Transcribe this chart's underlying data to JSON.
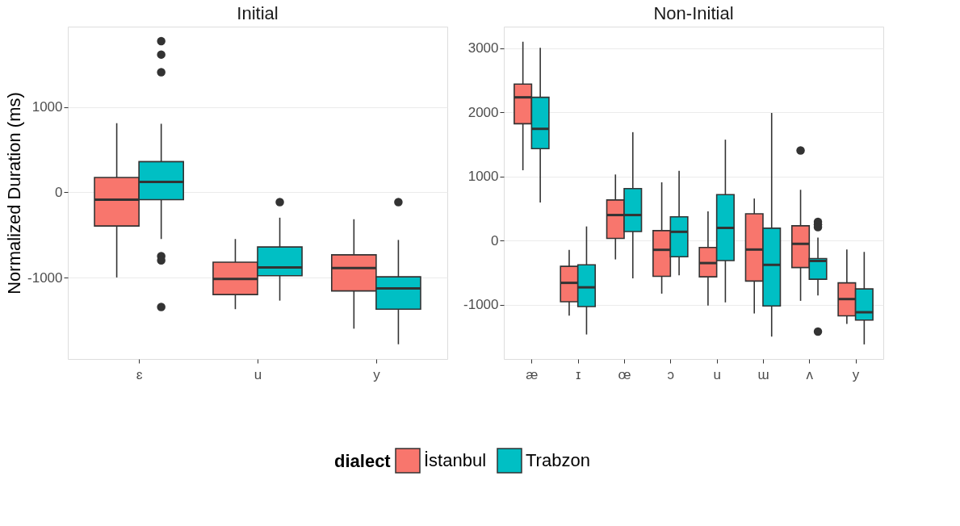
{
  "chart_data": [
    {
      "type": "box",
      "title": "Initial",
      "ylabel": "Normalized Duration (ms)",
      "categories": [
        "ɛ",
        "u",
        "y"
      ],
      "series": [
        {
          "name": "İstanbul",
          "color": "#f8766d",
          "boxes": [
            {
              "low": -998,
              "q1": -394,
              "median": -86,
              "q3": 175,
              "high": 812
            },
            {
              "low": -1370,
              "q1": -1199,
              "median": -1016,
              "q3": -819,
              "high": -547
            },
            {
              "low": -1599,
              "q1": -1156,
              "median": -887,
              "q3": -733,
              "high": -315
            }
          ]
        },
        {
          "name": "Trabzon",
          "color": "#00bfc4",
          "boxes": [
            {
              "low": -547,
              "q1": -86,
              "median": 122,
              "q3": 361,
              "high": 805,
              "outliers": [
                1775,
                1617,
                1410,
                -748,
                -798,
                -1345
              ]
            },
            {
              "low": -1270,
              "q1": -977,
              "median": -880,
              "q3": -640,
              "high": -297,
              "outliers": [
                -114
              ]
            },
            {
              "low": -1782,
              "q1": -1370,
              "median": -1127,
              "q3": -991,
              "high": -558,
              "outliers": [
                -114
              ]
            }
          ]
        }
      ],
      "ylim": [
        -1955,
        1945
      ],
      "yticks": [
        -1000,
        0,
        1000
      ],
      "grid": "y",
      "legend": "bottom",
      "legend_title": "dialect"
    },
    {
      "type": "box",
      "title": "Non-Initial",
      "categories": [
        "æ",
        "ɪ",
        "œ",
        "ɔ",
        "u",
        "ɯ",
        "ʌ",
        "y"
      ],
      "series": [
        {
          "name": "İstanbul",
          "color": "#f8766d",
          "boxes": [
            {
              "low": 1097,
              "q1": 1824,
              "median": 2236,
              "q3": 2443,
              "high": 3104
            },
            {
              "low": -1172,
              "q1": -956,
              "median": -661,
              "q3": -403,
              "high": -145
            },
            {
              "low": -295,
              "q1": 33,
              "median": 398,
              "q3": 633,
              "high": 1031
            },
            {
              "low": -830,
              "q1": -558,
              "median": -145,
              "q3": 155,
              "high": 909
            },
            {
              "low": -1017,
              "q1": -567,
              "median": -352,
              "q3": -108,
              "high": 455
            },
            {
              "low": -1139,
              "q1": -633,
              "median": -141,
              "q3": 417,
              "high": 656
            },
            {
              "low": -942,
              "q1": -422,
              "median": -52,
              "q3": 230,
              "high": 792,
              "outliers": [
                1406
              ]
            },
            {
              "low": -1303,
              "q1": -1177,
              "median": -914,
              "q3": -661,
              "high": -141
            }
          ]
        },
        {
          "name": "Trabzon",
          "color": "#00bfc4",
          "boxes": [
            {
              "low": 595,
              "q1": 1435,
              "median": 1744,
              "q3": 2236,
              "high": 3010
            },
            {
              "low": -1467,
              "q1": -1031,
              "median": -731,
              "q3": -380,
              "high": 220
            },
            {
              "low": -591,
              "q1": 141,
              "median": 398,
              "q3": 811,
              "high": 1692
            },
            {
              "low": -544,
              "q1": -253,
              "median": 136,
              "q3": 370,
              "high": 1088
            },
            {
              "low": -966,
              "q1": -314,
              "median": 197,
              "q3": 717,
              "high": 1575
            },
            {
              "low": -1500,
              "q1": -1022,
              "median": -380,
              "q3": 192,
              "high": 1993
            },
            {
              "low": -858,
              "q1": -605,
              "median": -319,
              "q3": -281,
              "high": 47,
              "outliers": [
                291,
                250,
                210,
                -1421
              ]
            },
            {
              "low": -1622,
              "q1": -1242,
              "median": -1120,
              "q3": -755,
              "high": -178
            }
          ]
        }
      ],
      "ylim": [
        -1850,
        3340
      ],
      "yticks": [
        -1000,
        0,
        1000,
        2000,
        3000
      ],
      "grid": "y"
    }
  ]
}
